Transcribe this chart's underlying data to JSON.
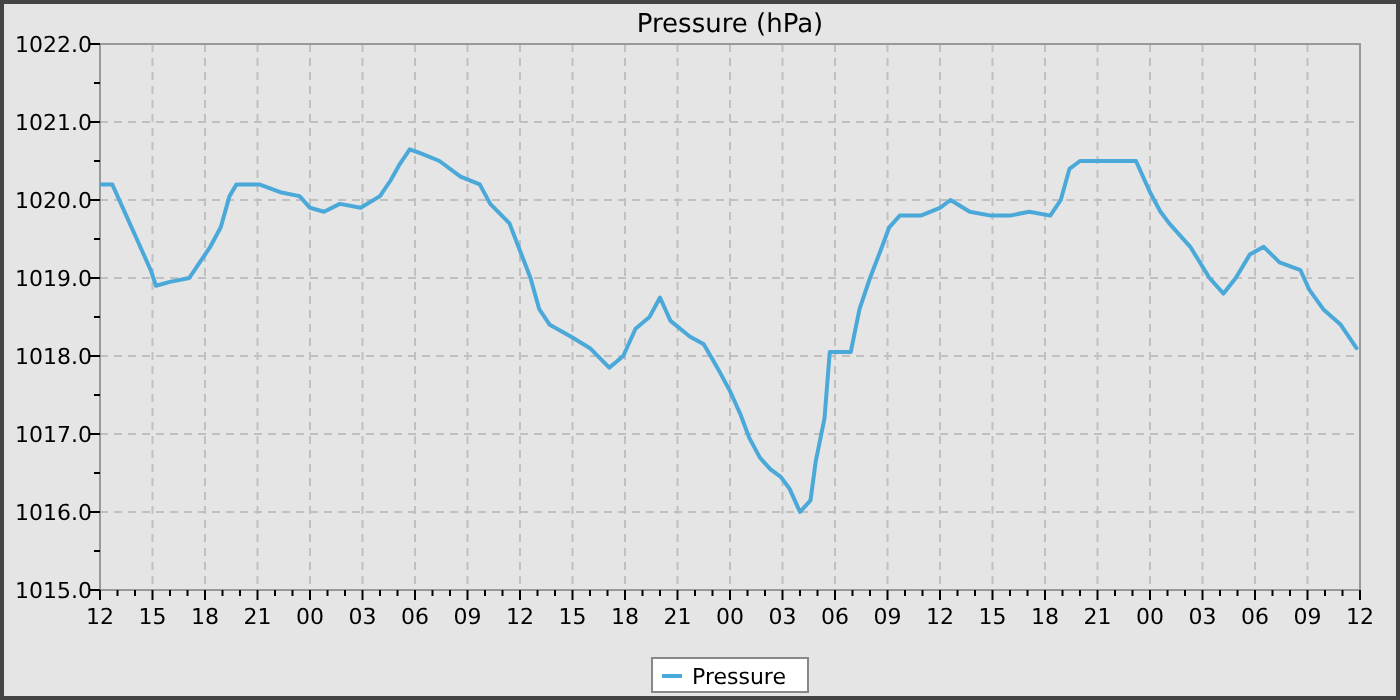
{
  "chart_data": {
    "type": "line",
    "title": "Pressure (hPa)",
    "legend": "bottom",
    "grid": true,
    "marker": "none",
    "line_style": "solid",
    "xlim": [
      12,
      84
    ],
    "ylim": [
      1015,
      1022
    ],
    "xticks": [
      {
        "value": 12,
        "label": "12"
      },
      {
        "value": 13,
        "label": null
      },
      {
        "value": 14,
        "label": null
      },
      {
        "value": 15,
        "label": "15"
      },
      {
        "value": 16,
        "label": null
      },
      {
        "value": 17,
        "label": null
      },
      {
        "value": 18,
        "label": "18"
      },
      {
        "value": 19,
        "label": null
      },
      {
        "value": 20,
        "label": null
      },
      {
        "value": 21,
        "label": "21"
      },
      {
        "value": 22,
        "label": null
      },
      {
        "value": 23,
        "label": null
      },
      {
        "value": 24,
        "label": "00"
      },
      {
        "value": 25,
        "label": null
      },
      {
        "value": 26,
        "label": null
      },
      {
        "value": 27,
        "label": "03"
      },
      {
        "value": 28,
        "label": null
      },
      {
        "value": 29,
        "label": null
      },
      {
        "value": 30,
        "label": "06"
      },
      {
        "value": 31,
        "label": null
      },
      {
        "value": 32,
        "label": null
      },
      {
        "value": 33,
        "label": "09"
      },
      {
        "value": 34,
        "label": null
      },
      {
        "value": 35,
        "label": null
      },
      {
        "value": 36,
        "label": "12"
      },
      {
        "value": 37,
        "label": null
      },
      {
        "value": 38,
        "label": null
      },
      {
        "value": 39,
        "label": "15"
      },
      {
        "value": 40,
        "label": null
      },
      {
        "value": 41,
        "label": null
      },
      {
        "value": 42,
        "label": "18"
      },
      {
        "value": 43,
        "label": null
      },
      {
        "value": 44,
        "label": null
      },
      {
        "value": 45,
        "label": "21"
      },
      {
        "value": 46,
        "label": null
      },
      {
        "value": 47,
        "label": null
      },
      {
        "value": 48,
        "label": "00"
      },
      {
        "value": 49,
        "label": null
      },
      {
        "value": 50,
        "label": null
      },
      {
        "value": 51,
        "label": "03"
      },
      {
        "value": 52,
        "label": null
      },
      {
        "value": 53,
        "label": null
      },
      {
        "value": 54,
        "label": "06"
      },
      {
        "value": 55,
        "label": null
      },
      {
        "value": 56,
        "label": null
      },
      {
        "value": 57,
        "label": "09"
      },
      {
        "value": 58,
        "label": null
      },
      {
        "value": 59,
        "label": null
      },
      {
        "value": 60,
        "label": "12"
      },
      {
        "value": 61,
        "label": null
      },
      {
        "value": 62,
        "label": null
      },
      {
        "value": 63,
        "label": "15"
      },
      {
        "value": 64,
        "label": null
      },
      {
        "value": 65,
        "label": null
      },
      {
        "value": 66,
        "label": "18"
      },
      {
        "value": 67,
        "label": null
      },
      {
        "value": 68,
        "label": null
      },
      {
        "value": 69,
        "label": "21"
      },
      {
        "value": 70,
        "label": null
      },
      {
        "value": 71,
        "label": null
      },
      {
        "value": 72,
        "label": "00"
      },
      {
        "value": 73,
        "label": null
      },
      {
        "value": 74,
        "label": null
      },
      {
        "value": 75,
        "label": "03"
      },
      {
        "value": 76,
        "label": null
      },
      {
        "value": 77,
        "label": null
      },
      {
        "value": 78,
        "label": "06"
      },
      {
        "value": 79,
        "label": null
      },
      {
        "value": 80,
        "label": null
      },
      {
        "value": 81,
        "label": "09"
      },
      {
        "value": 82,
        "label": null
      },
      {
        "value": 83,
        "label": null
      },
      {
        "value": 84,
        "label": "12"
      }
    ],
    "yticks": [
      {
        "value": 1015,
        "label": "1015.0"
      },
      {
        "value": 1015.5,
        "label": null
      },
      {
        "value": 1016,
        "label": "1016.0"
      },
      {
        "value": 1016.5,
        "label": null
      },
      {
        "value": 1017,
        "label": "1017.0"
      },
      {
        "value": 1017.5,
        "label": null
      },
      {
        "value": 1018,
        "label": "1018.0"
      },
      {
        "value": 1018.5,
        "label": null
      },
      {
        "value": 1019,
        "label": "1019.0"
      },
      {
        "value": 1019.5,
        "label": null
      },
      {
        "value": 1020,
        "label": "1020.0"
      },
      {
        "value": 1020.5,
        "label": null
      },
      {
        "value": 1021,
        "label": "1021.0"
      },
      {
        "value": 1021.5,
        "label": null
      },
      {
        "value": 1022,
        "label": "1022.0"
      }
    ],
    "x": [
      12,
      12.7,
      13.1,
      13.7,
      14.3,
      14.9,
      15.2,
      16.0,
      17.1,
      17.7,
      18.3,
      18.9,
      19.4,
      19.8,
      21.1,
      22.3,
      23.4,
      24.0,
      24.8,
      25.7,
      26.9,
      28.0,
      28.6,
      29.1,
      29.7,
      30.3,
      31.4,
      32.6,
      33.7,
      34.3,
      35.4,
      36.0,
      36.6,
      37.1,
      37.7,
      38.9,
      40.0,
      41.1,
      41.9,
      42.6,
      43.4,
      44.0,
      44.6,
      45.7,
      46.5,
      47.4,
      48.0,
      48.6,
      49.1,
      49.7,
      50.3,
      50.9,
      51.4,
      52.0,
      52.6,
      52.9,
      53.4,
      53.7,
      54.9,
      55.4,
      56.0,
      56.6,
      57.1,
      57.7,
      58.9,
      60.0,
      60.6,
      61.7,
      62.9,
      64.0,
      65.1,
      66.3,
      66.9,
      67.4,
      68.0,
      69.1,
      70.3,
      71.2,
      72.0,
      72.6,
      73.1,
      74.3,
      75.4,
      76.2,
      76.9,
      77.7,
      78.5,
      79.4,
      80.6,
      81.1,
      81.9,
      82.9,
      83.8
    ],
    "series": [
      {
        "name": "Pressure",
        "color": "#4ba9d9",
        "values": [
          1020.2,
          1020.2,
          1020.0,
          1019.7,
          1019.4,
          1019.1,
          1018.9,
          1018.95,
          1019.0,
          1019.2,
          1019.4,
          1019.65,
          1020.05,
          1020.2,
          1020.2,
          1020.1,
          1020.05,
          1019.9,
          1019.85,
          1019.95,
          1019.9,
          1020.05,
          1020.25,
          1020.45,
          1020.65,
          1020.6,
          1020.5,
          1020.3,
          1020.2,
          1019.95,
          1019.7,
          1019.35,
          1019.0,
          1018.6,
          1018.4,
          1018.25,
          1018.1,
          1017.85,
          1018.0,
          1018.35,
          1018.5,
          1018.75,
          1018.45,
          1018.25,
          1018.15,
          1017.8,
          1017.55,
          1017.25,
          1016.95,
          1016.7,
          1016.55,
          1016.45,
          1016.3,
          1016.0,
          1016.15,
          1016.65,
          1017.2,
          1018.05,
          1018.05,
          1018.6,
          1019.0,
          1019.35,
          1019.65,
          1019.8,
          1019.8,
          1019.9,
          1020.0,
          1019.85,
          1019.8,
          1019.8,
          1019.85,
          1019.8,
          1020.0,
          1020.4,
          1020.5,
          1020.5,
          1020.5,
          1020.5,
          1020.1,
          1019.85,
          1019.7,
          1019.4,
          1019.0,
          1018.8,
          1019.0,
          1019.3,
          1019.4,
          1019.2,
          1019.1,
          1018.85,
          1018.6,
          1018.4,
          1018.1
        ]
      }
    ]
  }
}
